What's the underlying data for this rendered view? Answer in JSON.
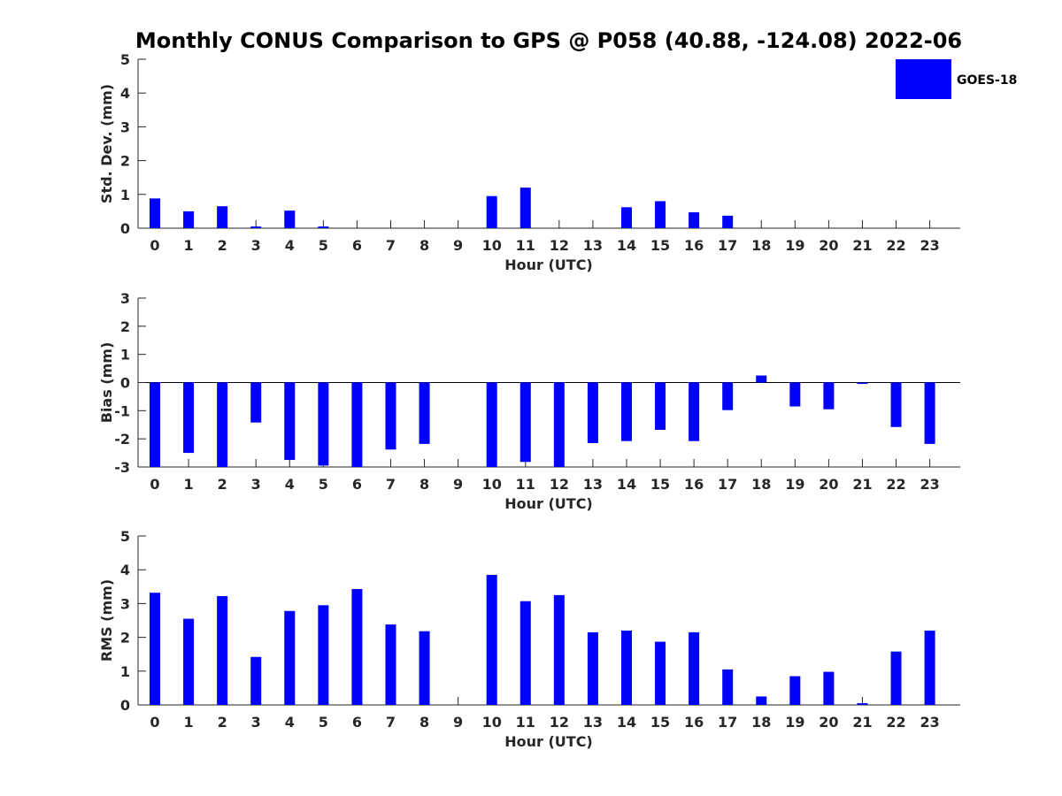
{
  "title": "Monthly CONUS Comparison to GPS @ P058 (40.88, -124.08) 2022-06",
  "legend": {
    "label": "GOES-18",
    "color": "#0000ff",
    "placement": "top-right"
  },
  "chart_data": [
    {
      "type": "bar",
      "name": "std-dev",
      "xlabel": "Hour (UTC)",
      "ylabel": "Std. Dev. (mm)",
      "ylim": [
        0,
        5
      ],
      "yticks": [
        "0",
        "1",
        "2",
        "3",
        "4",
        "5"
      ],
      "categories": [
        "0",
        "1",
        "2",
        "3",
        "4",
        "5",
        "6",
        "7",
        "8",
        "9",
        "10",
        "11",
        "12",
        "13",
        "14",
        "15",
        "16",
        "17",
        "18",
        "19",
        "20",
        "21",
        "22",
        "23"
      ],
      "series": [
        {
          "name": "GOES-18",
          "color": "#0000ff",
          "values": [
            0.88,
            0.5,
            0.65,
            0.05,
            0.52,
            0.05,
            null,
            null,
            null,
            null,
            0.95,
            1.2,
            null,
            null,
            0.62,
            0.8,
            0.47,
            0.37,
            null,
            null,
            null,
            null,
            null,
            null
          ]
        }
      ]
    },
    {
      "type": "bar",
      "name": "bias",
      "xlabel": "Hour (UTC)",
      "ylabel": "Bias (mm)",
      "ylim": [
        -3,
        3
      ],
      "yticks": [
        "-3",
        "-2",
        "-1",
        "0",
        "1",
        "2",
        "3"
      ],
      "zero_line": true,
      "categories": [
        "0",
        "1",
        "2",
        "3",
        "4",
        "5",
        "6",
        "7",
        "8",
        "9",
        "10",
        "11",
        "12",
        "13",
        "14",
        "15",
        "16",
        "17",
        "18",
        "19",
        "20",
        "21",
        "22",
        "23"
      ],
      "series": [
        {
          "name": "GOES-18",
          "color": "#0000ff",
          "values": [
            -3.0,
            -2.5,
            -3.0,
            -1.42,
            -2.75,
            -2.95,
            -3.0,
            -2.38,
            -2.18,
            null,
            -3.0,
            -2.82,
            -3.0,
            -2.15,
            -2.08,
            -1.68,
            -2.08,
            -0.98,
            0.25,
            -0.85,
            -0.95,
            -0.05,
            -1.58,
            -2.18
          ]
        }
      ]
    },
    {
      "type": "bar",
      "name": "rms",
      "xlabel": "Hour (UTC)",
      "ylabel": "RMS (mm)",
      "ylim": [
        0,
        5
      ],
      "yticks": [
        "0",
        "1",
        "2",
        "3",
        "4",
        "5"
      ],
      "categories": [
        "0",
        "1",
        "2",
        "3",
        "4",
        "5",
        "6",
        "7",
        "8",
        "9",
        "10",
        "11",
        "12",
        "13",
        "14",
        "15",
        "16",
        "17",
        "18",
        "19",
        "20",
        "21",
        "22",
        "23"
      ],
      "series": [
        {
          "name": "GOES-18",
          "color": "#0000ff",
          "values": [
            3.32,
            2.55,
            3.22,
            1.42,
            2.78,
            2.95,
            3.43,
            2.38,
            2.18,
            null,
            3.85,
            3.07,
            3.25,
            2.15,
            2.2,
            1.87,
            2.15,
            1.05,
            0.25,
            0.85,
            0.98,
            0.05,
            1.58,
            2.2
          ]
        }
      ]
    }
  ]
}
